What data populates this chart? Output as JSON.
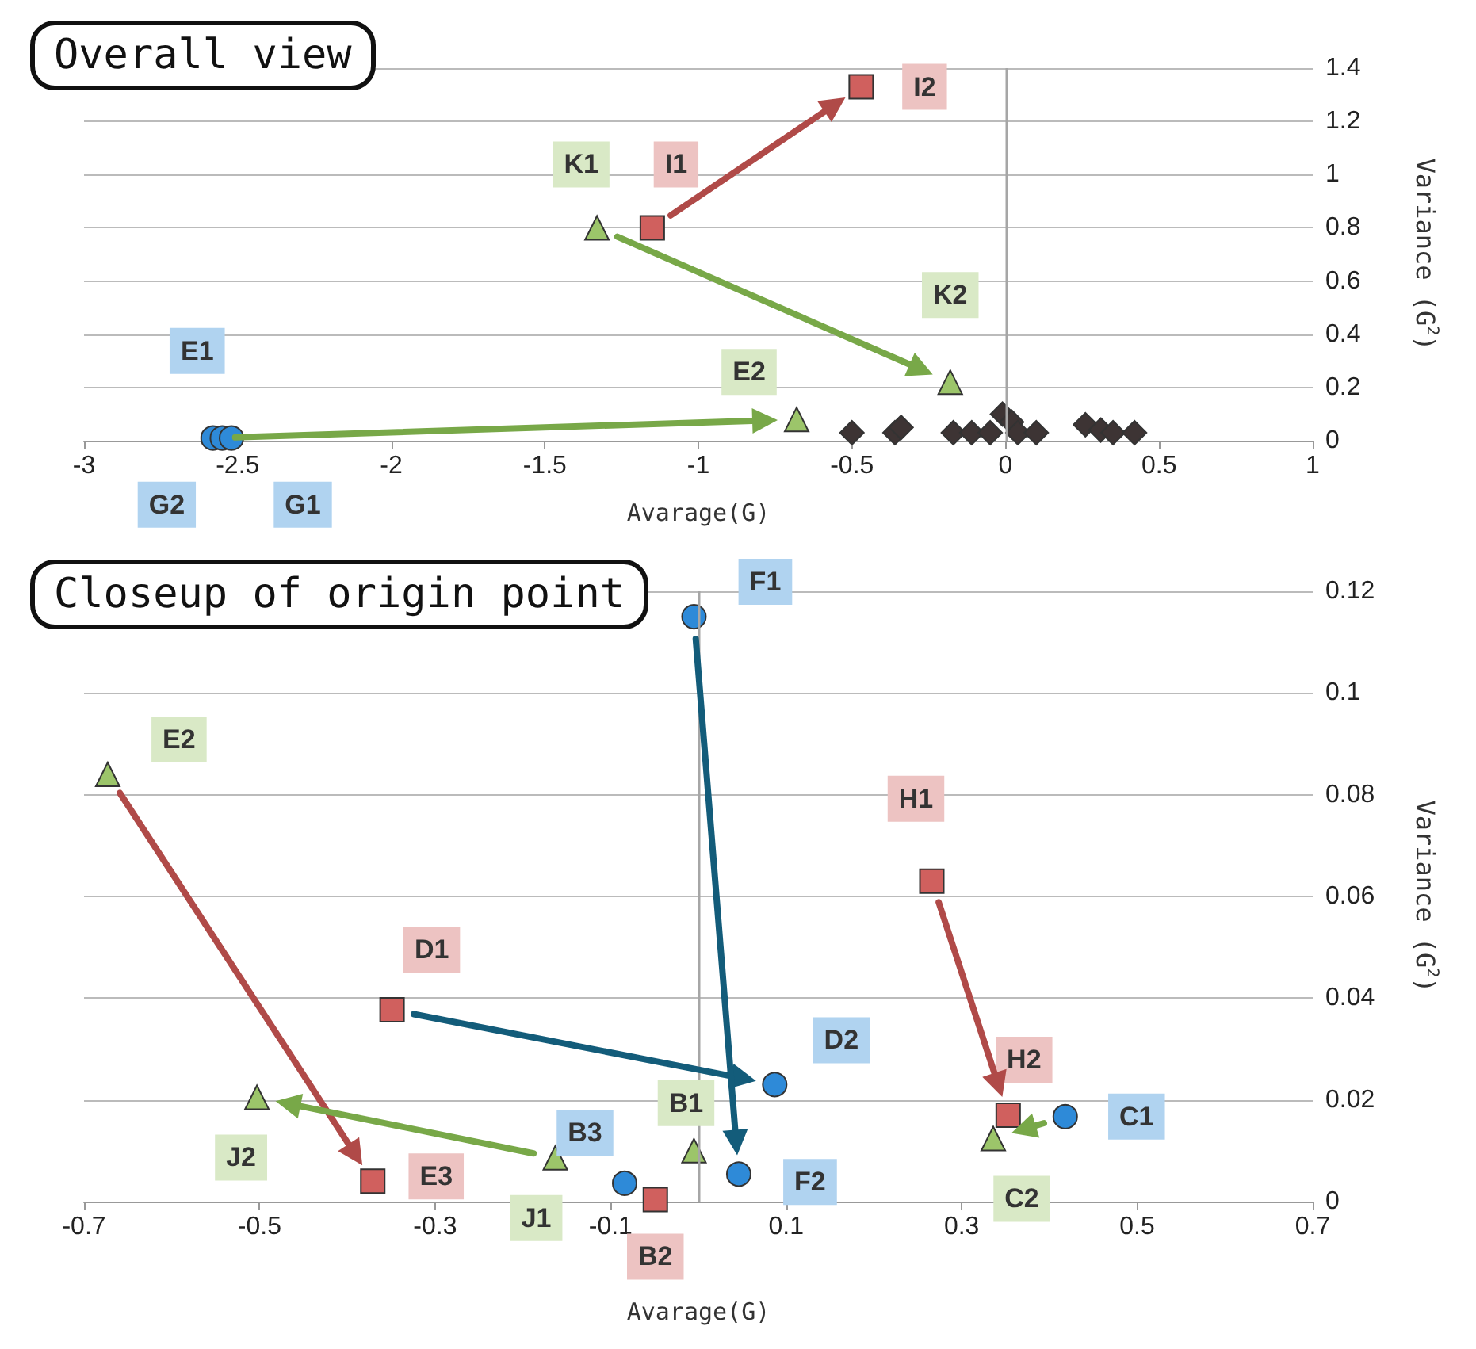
{
  "chart_data": [
    {
      "type": "scatter",
      "title": "Overall view",
      "xlabel": "Avarage(G)",
      "ylabel": "Variance (G$^{2}$)",
      "xlim": [
        -3,
        1
      ],
      "xticks": [
        -3,
        -2.5,
        -2,
        -1.5,
        -1,
        -0.5,
        0,
        0.5,
        1
      ],
      "ylim": [
        0,
        1.4
      ],
      "yticks": [
        0,
        0.2,
        0.4,
        0.6,
        0.8,
        1,
        1.2,
        1.4
      ],
      "grid": "y",
      "ref_lines": [
        {
          "axis": "x",
          "value": 0,
          "color": "#a6a6a6"
        }
      ],
      "series": [
        {
          "color": "#2e8ad8",
          "marker": "circle",
          "x": [
            -2.58,
            -2.55,
            -2.52
          ],
          "values": [
            0.01,
            0.01,
            0.01
          ]
        },
        {
          "color": "#d0605e",
          "marker": "square",
          "x": [
            -1.15,
            -0.47
          ],
          "values": [
            0.8,
            1.33
          ]
        },
        {
          "color": "#9cc56a",
          "marker": "triangle",
          "x": [
            -1.33,
            -0.18,
            -0.68
          ],
          "values": [
            0.8,
            0.22,
            0.08
          ]
        },
        {
          "color": "#3d3434",
          "marker": "diamond",
          "x": [
            -0.5,
            -0.36,
            -0.34,
            -0.17,
            -0.11,
            -0.05,
            -0.01,
            0.02,
            0.04,
            0.1,
            0.26,
            0.31,
            0.35,
            0.42
          ],
          "values": [
            0.03,
            0.03,
            0.05,
            0.03,
            0.03,
            0.03,
            0.1,
            0.07,
            0.03,
            0.03,
            0.06,
            0.04,
            0.03,
            0.03
          ]
        }
      ],
      "annotations": [
        {
          "text": "E1",
          "x": -2.58,
          "y": 0.01
        },
        {
          "text": "G2",
          "x": -2.55,
          "y": 0.01
        },
        {
          "text": "G1",
          "x": -2.52,
          "y": 0.01
        },
        {
          "text": "I1",
          "x": -1.15,
          "y": 0.8
        },
        {
          "text": "I2",
          "x": -0.47,
          "y": 1.33
        },
        {
          "text": "K1",
          "x": -1.33,
          "y": 0.8
        },
        {
          "text": "K2",
          "x": -0.18,
          "y": 0.22
        },
        {
          "text": "E2",
          "x": -0.68,
          "y": 0.08
        }
      ]
    },
    {
      "type": "scatter",
      "title": "Closeup of origin point",
      "xlabel": "Avarage(G)",
      "ylabel": "Variance (G$^{2}$)",
      "xlim": [
        -0.7,
        0.7
      ],
      "xticks": [
        -0.7,
        -0.5,
        -0.3,
        -0.1,
        0.1,
        0.3,
        0.5,
        0.7
      ],
      "ylim": [
        0,
        0.12
      ],
      "yticks": [
        0,
        0.02,
        0.04,
        0.06,
        0.08,
        0.1,
        0.12
      ],
      "grid": "y",
      "ref_lines": [
        {
          "axis": "x",
          "value": 0,
          "color": "#a6a6a6"
        }
      ],
      "series": [
        {
          "color": "#2e8ad8",
          "marker": "circle",
          "x": [
            -0.005,
            0.087,
            0.046,
            -0.084,
            0.418
          ],
          "values": [
            0.115,
            0.023,
            0.0054,
            0.0036,
            0.0167
          ]
        },
        {
          "color": "#d0605e",
          "marker": "square",
          "x": [
            0.266,
            -0.349,
            -0.049,
            -0.371,
            0.353
          ],
          "values": [
            0.063,
            0.0377,
            0.0004,
            0.004,
            0.017
          ]
        },
        {
          "color": "#9cc56a",
          "marker": "triangle",
          "x": [
            -0.673,
            -0.005,
            -0.163,
            -0.503,
            0.336
          ],
          "values": [
            0.084,
            0.01,
            0.0086,
            0.0205,
            0.0124
          ]
        }
      ],
      "annotations": [
        {
          "text": "F1",
          "x": -0.005,
          "y": 0.115
        },
        {
          "text": "E2",
          "x": -0.673,
          "y": 0.084
        },
        {
          "text": "H1",
          "x": 0.266,
          "y": 0.063
        },
        {
          "text": "D1",
          "x": -0.349,
          "y": 0.0377
        },
        {
          "text": "D2",
          "x": 0.087,
          "y": 0.023
        },
        {
          "text": "B1",
          "x": -0.005,
          "y": 0.01
        },
        {
          "text": "B3",
          "x": -0.084,
          "y": 0.0036
        },
        {
          "text": "F2",
          "x": 0.046,
          "y": 0.0054
        },
        {
          "text": "B2",
          "x": -0.049,
          "y": 0.0004
        },
        {
          "text": "J1",
          "x": -0.163,
          "y": 0.0086
        },
        {
          "text": "J2",
          "x": -0.503,
          "y": 0.0205
        },
        {
          "text": "E3",
          "x": -0.371,
          "y": 0.004
        },
        {
          "text": "H2",
          "x": 0.353,
          "y": 0.017
        },
        {
          "text": "C1",
          "x": 0.418,
          "y": 0.0167
        },
        {
          "text": "C2",
          "x": 0.336,
          "y": 0.0124
        }
      ]
    }
  ]
}
